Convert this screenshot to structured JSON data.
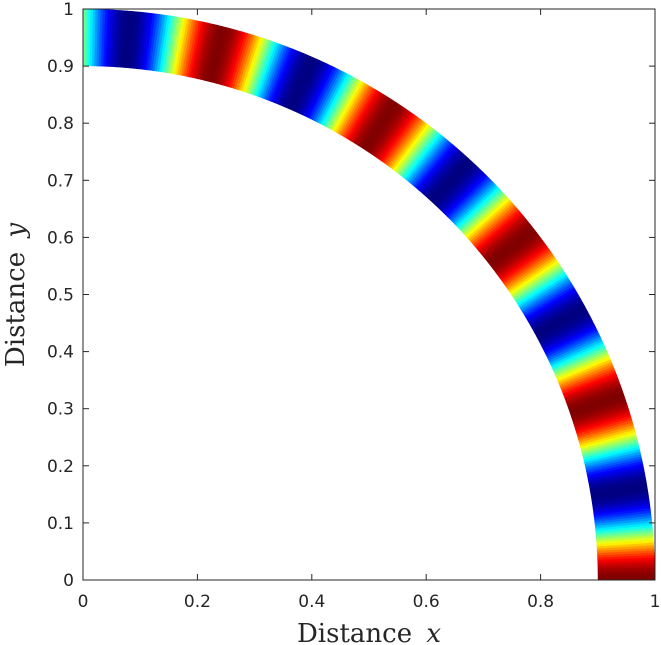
{
  "chart_data": {
    "type": "heatmap",
    "title": "",
    "xlabel_text": "Distance",
    "xlabel_var": "x",
    "ylabel_text": "Distance",
    "ylabel_var": "y",
    "xlim": [
      0,
      1
    ],
    "ylim": [
      0,
      1
    ],
    "x_ticks": [
      0,
      0.2,
      0.4,
      0.6,
      0.8,
      1
    ],
    "y_ticks": [
      0,
      0.1,
      0.2,
      0.3,
      0.4,
      0.5,
      0.6,
      0.7,
      0.8,
      0.9,
      1
    ],
    "x_tick_labels": [
      "0",
      "0.2",
      "0.4",
      "0.6",
      "0.8",
      "1"
    ],
    "y_tick_labels": [
      "0",
      "0.1",
      "0.2",
      "0.3",
      "0.4",
      "0.5",
      "0.6",
      "0.7",
      "0.8",
      "0.9",
      "1"
    ],
    "domain": {
      "shape": "quarter-annulus",
      "inner_radius": 0.9,
      "outer_radius": 1.0,
      "angle_range_deg": [
        0,
        90
      ]
    },
    "field": {
      "description": "oscillating field along the arc, roughly uniform across the radial thickness",
      "periods_over_quarter_circle": 4.75,
      "phase_at_angle_0": "max",
      "value_range": [
        -1,
        1
      ]
    },
    "colormap": "jet",
    "grid": false,
    "legend": "none"
  }
}
